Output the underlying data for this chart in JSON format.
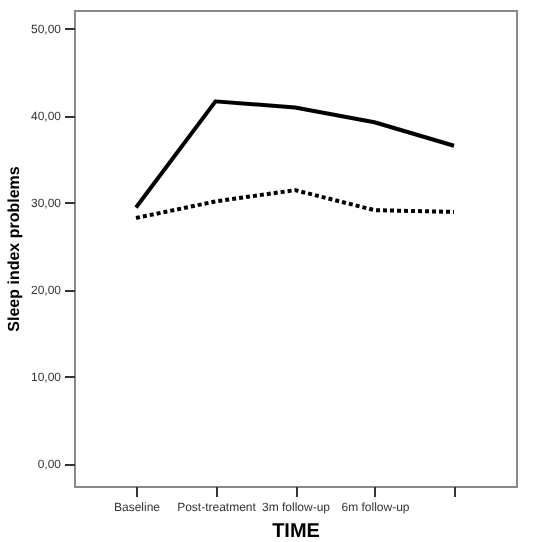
{
  "chart_data": {
    "type": "line",
    "xlabel": "TIME",
    "ylabel": "Sleep index problems",
    "categories": [
      "Baseline",
      "Post-treatment",
      "3m follow-up",
      "6m follow-up",
      null
    ],
    "series": [
      {
        "color": "#000000",
        "line_style": "solid",
        "values": [
          29.4,
          41.6,
          40.9,
          39.2,
          36.5
        ]
      },
      {
        "color": "#000000",
        "line_style": "dotted",
        "values": [
          28.2,
          30.1,
          31.4,
          29.1,
          28.9
        ]
      }
    ],
    "ylim": [
      -2.6,
      52.1
    ],
    "yticks": [
      {
        "value": 0,
        "label": "0,00"
      },
      {
        "value": 10,
        "label": "10,00"
      },
      {
        "value": 20,
        "label": "20,00"
      },
      {
        "value": 30,
        "label": "30,00"
      },
      {
        "value": 40,
        "label": "40,00"
      },
      {
        "value": 50,
        "label": "50,00"
      }
    ],
    "grid": false,
    "marker": "none"
  }
}
